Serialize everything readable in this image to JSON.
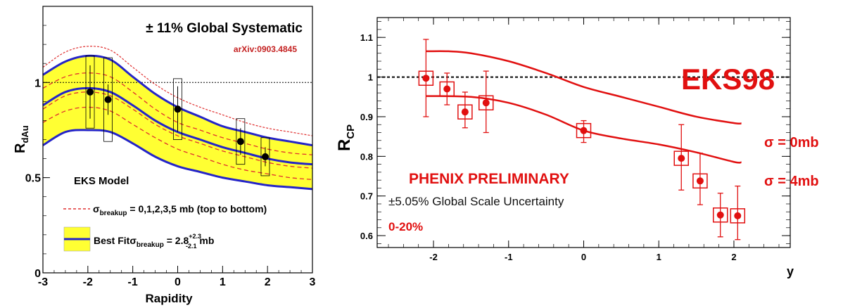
{
  "chart_data": [
    {
      "type": "line",
      "title": "",
      "xlabel": "Rapidity",
      "ylabel": "R",
      "ylabel_sub": "dAu",
      "xlim": [
        -3,
        3
      ],
      "ylim": [
        0,
        1.4
      ],
      "x_ticks": [
        -3,
        -2,
        -1,
        0,
        1,
        2,
        3
      ],
      "x_tick_labels": [
        "-3",
        "-2",
        "-1",
        "0",
        "1",
        "2",
        "3"
      ],
      "y_ticks": [
        0,
        0.5,
        1
      ],
      "y_tick_labels": [
        "0",
        "0.5",
        "1"
      ],
      "grid": false,
      "reference_line": 1.0,
      "annotations": {
        "systematic": "± 11% Global Systematic",
        "arxiv": "arXiv:0903.4845",
        "model": "EKS Model",
        "legend1_prefix": "σ",
        "legend1_sub": "breakup",
        "legend1_rest": " = 0,1,2,3,5 mb (top to bottom)",
        "legend2_prefix": "Best Fit",
        "legend2_sigma": "σ",
        "legend2_sub": "breakup",
        "legend2_mid": " = 2.8",
        "legend2_sup": "+2.3",
        "legend2_sub2": "-2.1",
        "legend2_unit": " mb"
      },
      "colors": {
        "band": "#ffff33",
        "bestfit": "#2424c8",
        "breakup": "#e03030",
        "points": "#000000"
      },
      "x": [
        -3,
        -2.5,
        -2,
        -1.5,
        -1,
        -0.5,
        0,
        0.5,
        1,
        1.5,
        2,
        2.5,
        3
      ],
      "series": [
        {
          "name": "0 mb",
          "style": "dotted",
          "values": [
            1.08,
            1.16,
            1.19,
            1.17,
            1.08,
            0.99,
            0.92,
            0.87,
            0.83,
            0.79,
            0.76,
            0.74,
            0.72
          ]
        },
        {
          "name": "band upper",
          "style": "solid",
          "values": [
            1.04,
            1.11,
            1.14,
            1.12,
            1.03,
            0.94,
            0.87,
            0.82,
            0.77,
            0.74,
            0.71,
            0.69,
            0.67
          ]
        },
        {
          "name": "1 mb",
          "style": "dashed",
          "values": [
            0.97,
            1.03,
            1.05,
            1.03,
            0.95,
            0.86,
            0.79,
            0.75,
            0.71,
            0.68,
            0.65,
            0.63,
            0.62
          ]
        },
        {
          "name": "best fit",
          "style": "solid",
          "values": [
            0.88,
            0.95,
            0.97,
            0.95,
            0.88,
            0.8,
            0.74,
            0.7,
            0.66,
            0.63,
            0.6,
            0.58,
            0.57
          ]
        },
        {
          "name": "2 mb",
          "style": "dashed",
          "values": [
            0.86,
            0.93,
            0.95,
            0.93,
            0.86,
            0.78,
            0.72,
            0.68,
            0.64,
            0.61,
            0.58,
            0.56,
            0.55
          ]
        },
        {
          "name": "3 mb",
          "style": "dashed",
          "values": [
            0.79,
            0.85,
            0.87,
            0.85,
            0.78,
            0.71,
            0.65,
            0.61,
            0.57,
            0.54,
            0.52,
            0.5,
            0.49
          ]
        },
        {
          "name": "band lower",
          "style": "solid",
          "values": [
            0.67,
            0.74,
            0.75,
            0.74,
            0.68,
            0.61,
            0.56,
            0.53,
            0.5,
            0.48,
            0.46,
            0.45,
            0.44
          ]
        }
      ],
      "points": [
        {
          "x": -1.95,
          "y": 0.95,
          "err": 0.14,
          "sys": 0.19
        },
        {
          "x": -1.55,
          "y": 0.91,
          "err": 0.08,
          "sys": 0.22
        },
        {
          "x": 0.0,
          "y": 0.86,
          "err": 0.12,
          "sys": 0.16
        },
        {
          "x": 1.4,
          "y": 0.69,
          "err": 0.07,
          "sys": 0.12
        },
        {
          "x": 1.95,
          "y": 0.61,
          "err": 0.05,
          "sys": 0.1
        }
      ]
    },
    {
      "type": "scatter",
      "title": "",
      "xlabel": "y",
      "ylabel": "R",
      "ylabel_sub": "CP",
      "xlim": [
        -2.75,
        2.75
      ],
      "ylim": [
        0.57,
        1.15
      ],
      "x_ticks": [
        -2,
        -1,
        0,
        1,
        2
      ],
      "x_tick_labels": [
        "-2",
        "-1",
        "0",
        "1",
        "2"
      ],
      "y_ticks": [
        0.6,
        0.7,
        0.8,
        0.9,
        1.0,
        1.1
      ],
      "y_tick_labels": [
        "0.6",
        "0.7",
        "0.8",
        "0.9",
        "1",
        "1.1"
      ],
      "grid": false,
      "reference_line": 1.0,
      "annotations": {
        "eks": "EKS98",
        "phenix": "PHENIX PRELIMINARY",
        "scale": "±5.05% Global Scale Uncertainty",
        "centrality": "0-20%",
        "sigma0": "σ = 0mb",
        "sigma4": "σ = 4mb"
      },
      "colors": {
        "accent": "#e11010",
        "text": "#111111"
      },
      "curves": [
        {
          "name": "σ = 0mb",
          "x": [
            -2.1,
            -1.8,
            -1.5,
            -1.0,
            -0.5,
            0.0,
            0.5,
            1.0,
            1.5,
            2.0,
            2.1
          ],
          "y": [
            1.065,
            1.065,
            1.06,
            1.04,
            1.01,
            0.975,
            0.95,
            0.925,
            0.9,
            0.884,
            0.883
          ]
        },
        {
          "name": "σ = 4mb",
          "x": [
            -2.1,
            -1.5,
            -1.0,
            -0.5,
            0.0,
            0.5,
            1.0,
            1.5,
            2.0,
            2.1
          ],
          "y": [
            0.952,
            0.95,
            0.935,
            0.905,
            0.865,
            0.845,
            0.83,
            0.81,
            0.786,
            0.785
          ]
        }
      ],
      "points": [
        {
          "x": -2.1,
          "y": 0.997,
          "err_up": 0.098,
          "err_dn": 0.097
        },
        {
          "x": -1.82,
          "y": 0.97,
          "err_up": 0.04,
          "err_dn": 0.04
        },
        {
          "x": -1.58,
          "y": 0.912,
          "err_up": 0.05,
          "err_dn": 0.04
        },
        {
          "x": -1.3,
          "y": 0.935,
          "err_up": 0.08,
          "err_dn": 0.075
        },
        {
          "x": 0.0,
          "y": 0.865,
          "err_up": 0.025,
          "err_dn": 0.03
        },
        {
          "x": 1.3,
          "y": 0.795,
          "err_up": 0.085,
          "err_dn": 0.08
        },
        {
          "x": 1.55,
          "y": 0.738,
          "err_up": 0.07,
          "err_dn": 0.06
        },
        {
          "x": 1.82,
          "y": 0.652,
          "err_up": 0.055,
          "err_dn": 0.055
        },
        {
          "x": 2.05,
          "y": 0.65,
          "err_up": 0.075,
          "err_dn": 0.06
        }
      ]
    }
  ]
}
